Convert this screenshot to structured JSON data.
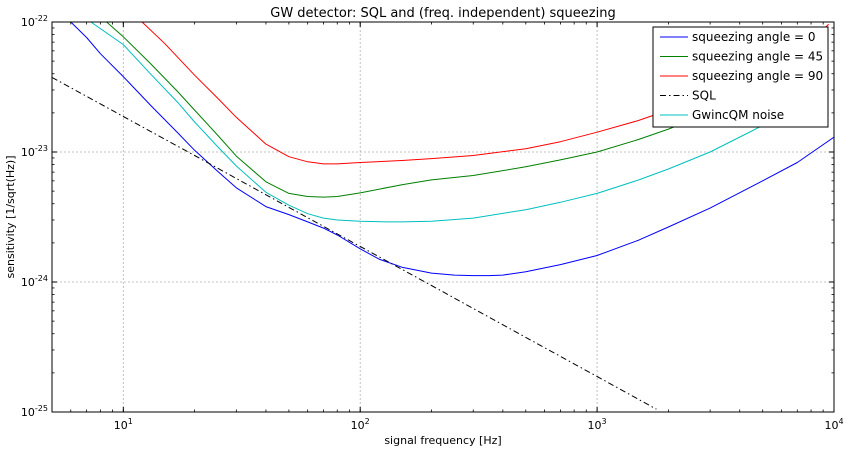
{
  "chart_data": {
    "type": "line",
    "title": "GW detector: SQL and (freq. independent) squeezing",
    "xlabel": "signal frequency [Hz]",
    "ylabel": "sensitivity [1/sqrt(Hz)]",
    "xscale": "log",
    "yscale": "log",
    "xlim": [
      5,
      10000
    ],
    "ylim": [
      1e-25,
      1e-22
    ],
    "grid": true,
    "legend_position": "top-right",
    "x_ticks": [
      {
        "value": 10,
        "base": "10",
        "exp": "1"
      },
      {
        "value": 100,
        "base": "10",
        "exp": "2"
      },
      {
        "value": 1000,
        "base": "10",
        "exp": "3"
      },
      {
        "value": 10000,
        "base": "10",
        "exp": "4"
      }
    ],
    "y_ticks": [
      {
        "value": 1e-25,
        "base": "10",
        "exp": "-25"
      },
      {
        "value": 1e-24,
        "base": "10",
        "exp": "-24"
      },
      {
        "value": 1e-23,
        "base": "10",
        "exp": "-23"
      },
      {
        "value": 1e-22,
        "base": "10",
        "exp": "-22"
      }
    ],
    "series": [
      {
        "name": "squeezing angle = 0",
        "color": "#0000ff",
        "dash": "solid",
        "x": [
          6,
          7,
          8,
          10,
          13,
          17,
          20,
          25,
          30,
          40,
          50,
          60,
          70,
          80,
          100,
          120,
          150,
          200,
          250,
          300,
          350,
          400,
          500,
          700,
          1000,
          1500,
          2000,
          3000,
          5000,
          7000,
          10000
        ],
        "y": [
          1e-22,
          7.6e-23,
          5.7e-23,
          3.8e-23,
          2.3e-23,
          1.4e-23,
          1.03e-23,
          7.1e-24,
          5.3e-24,
          3.8e-24,
          3.3e-24,
          2.9e-24,
          2.6e-24,
          2.3e-24,
          1.8e-24,
          1.5e-24,
          1.3e-24,
          1.17e-24,
          1.13e-24,
          1.12e-24,
          1.12e-24,
          1.13e-24,
          1.2e-24,
          1.36e-24,
          1.6e-24,
          2.1e-24,
          2.65e-24,
          3.7e-24,
          6e-24,
          8.3e-24,
          1.3e-23
        ]
      },
      {
        "name": "squeezing angle = 45",
        "color": "#008000",
        "dash": "solid",
        "x": [
          8.5,
          10,
          13,
          17,
          20,
          25,
          30,
          40,
          50,
          60,
          70,
          80,
          100,
          150,
          200,
          300,
          500,
          700,
          1000,
          1500,
          2000,
          3000,
          4500
        ],
        "y": [
          1e-22,
          7.7e-23,
          4.8e-23,
          2.9e-23,
          2.1e-23,
          1.35e-23,
          9.3e-24,
          5.9e-24,
          4.8e-24,
          4.55e-24,
          4.5e-24,
          4.55e-24,
          4.85e-24,
          5.6e-24,
          6.1e-24,
          6.6e-24,
          7.7e-24,
          8.7e-24,
          1e-23,
          1.25e-23,
          1.5e-23,
          2e-23,
          2.9e-23
        ]
      },
      {
        "name": "squeezing angle = 90",
        "color": "#ff0000",
        "dash": "solid",
        "x": [
          12,
          15,
          20,
          25,
          30,
          40,
          50,
          60,
          70,
          80,
          100,
          150,
          200,
          300,
          500,
          700,
          1000,
          1500,
          2000,
          3000,
          4500,
          6000,
          8000,
          9500
        ],
        "y": [
          1e-22,
          6.8e-23,
          3.9e-23,
          2.6e-23,
          1.85e-23,
          1.15e-23,
          9.2e-24,
          8.4e-24,
          8.1e-24,
          8.1e-24,
          8.3e-24,
          8.6e-24,
          8.9e-24,
          9.4e-24,
          1.06e-23,
          1.2e-23,
          1.42e-23,
          1.75e-23,
          2.1e-23,
          2.8e-23,
          4e-23,
          5.2e-23,
          7.2e-23,
          9.6e-23
        ]
      },
      {
        "name": "SQL",
        "color": "#000000",
        "dash": "dashdot",
        "x": [
          5,
          10,
          20,
          50,
          100,
          200,
          500,
          1000,
          1780
        ],
        "y": [
          3.75e-23,
          1.875e-23,
          9.4e-24,
          3.75e-24,
          1.875e-24,
          9.4e-25,
          3.75e-25,
          1.875e-25,
          1.05e-25
        ]
      },
      {
        "name": "GwincQM noise",
        "color": "#00bfbf",
        "dash": "solid",
        "x": [
          7.3,
          10,
          13,
          17,
          20,
          25,
          30,
          40,
          50,
          60,
          70,
          80,
          100,
          130,
          150,
          200,
          300,
          500,
          700,
          1000,
          1500,
          2000,
          3000,
          4500,
          6000,
          7500
        ],
        "y": [
          1e-22,
          6.7e-23,
          4e-23,
          2.4e-23,
          1.7e-23,
          1.1e-23,
          7.8e-24,
          4.9e-24,
          3.9e-24,
          3.35e-24,
          3.1e-24,
          3e-24,
          2.93e-24,
          2.9e-24,
          2.9e-24,
          2.93e-24,
          3.1e-24,
          3.6e-24,
          4.1e-24,
          4.8e-24,
          6.1e-24,
          7.4e-24,
          1e-23,
          1.45e-23,
          1.9e-23,
          2.35e-23
        ]
      }
    ]
  }
}
